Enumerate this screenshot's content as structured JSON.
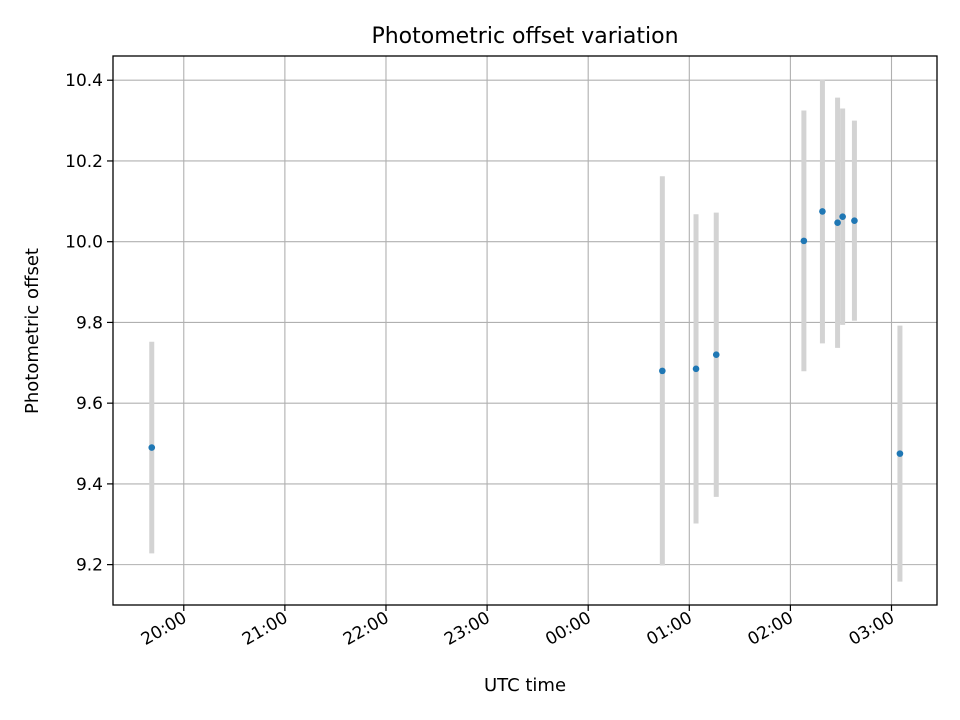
{
  "chart_data": {
    "type": "scatter",
    "title": "Photometric offset variation",
    "xlabel": "UTC time",
    "ylabel": "Photometric offset",
    "ylim": [
      9.1,
      10.46
    ],
    "xlim": [
      "19:18",
      "03:27"
    ],
    "grid": true,
    "x_tick_labels": [
      "20:00",
      "21:00",
      "22:00",
      "23:00",
      "00:00",
      "01:00",
      "02:00",
      "03:00"
    ],
    "y_tick_labels": [
      "9.2",
      "9.4",
      "9.6",
      "9.8",
      "10.0",
      "10.2",
      "10.4"
    ],
    "points": [
      {
        "x": "19:41",
        "y": 9.49,
        "err": 0.262
      },
      {
        "x": "00:44",
        "y": 9.68,
        "err": 0.482
      },
      {
        "x": "01:04",
        "y": 9.685,
        "err": 0.383
      },
      {
        "x": "01:16",
        "y": 9.72,
        "err": 0.352
      },
      {
        "x": "02:08",
        "y": 10.002,
        "err": 0.323
      },
      {
        "x": "02:19",
        "y": 10.075,
        "err": 0.327
      },
      {
        "x": "02:28",
        "y": 10.047,
        "err": 0.31
      },
      {
        "x": "02:31",
        "y": 10.062,
        "err": 0.268
      },
      {
        "x": "02:38",
        "y": 10.052,
        "err": 0.248
      },
      {
        "x": "03:05",
        "y": 9.475,
        "err": 0.317
      }
    ],
    "colors": {
      "points": "#1f77b4",
      "errorbars": "#d3d3d3",
      "grid": "#b0b0b0"
    }
  }
}
